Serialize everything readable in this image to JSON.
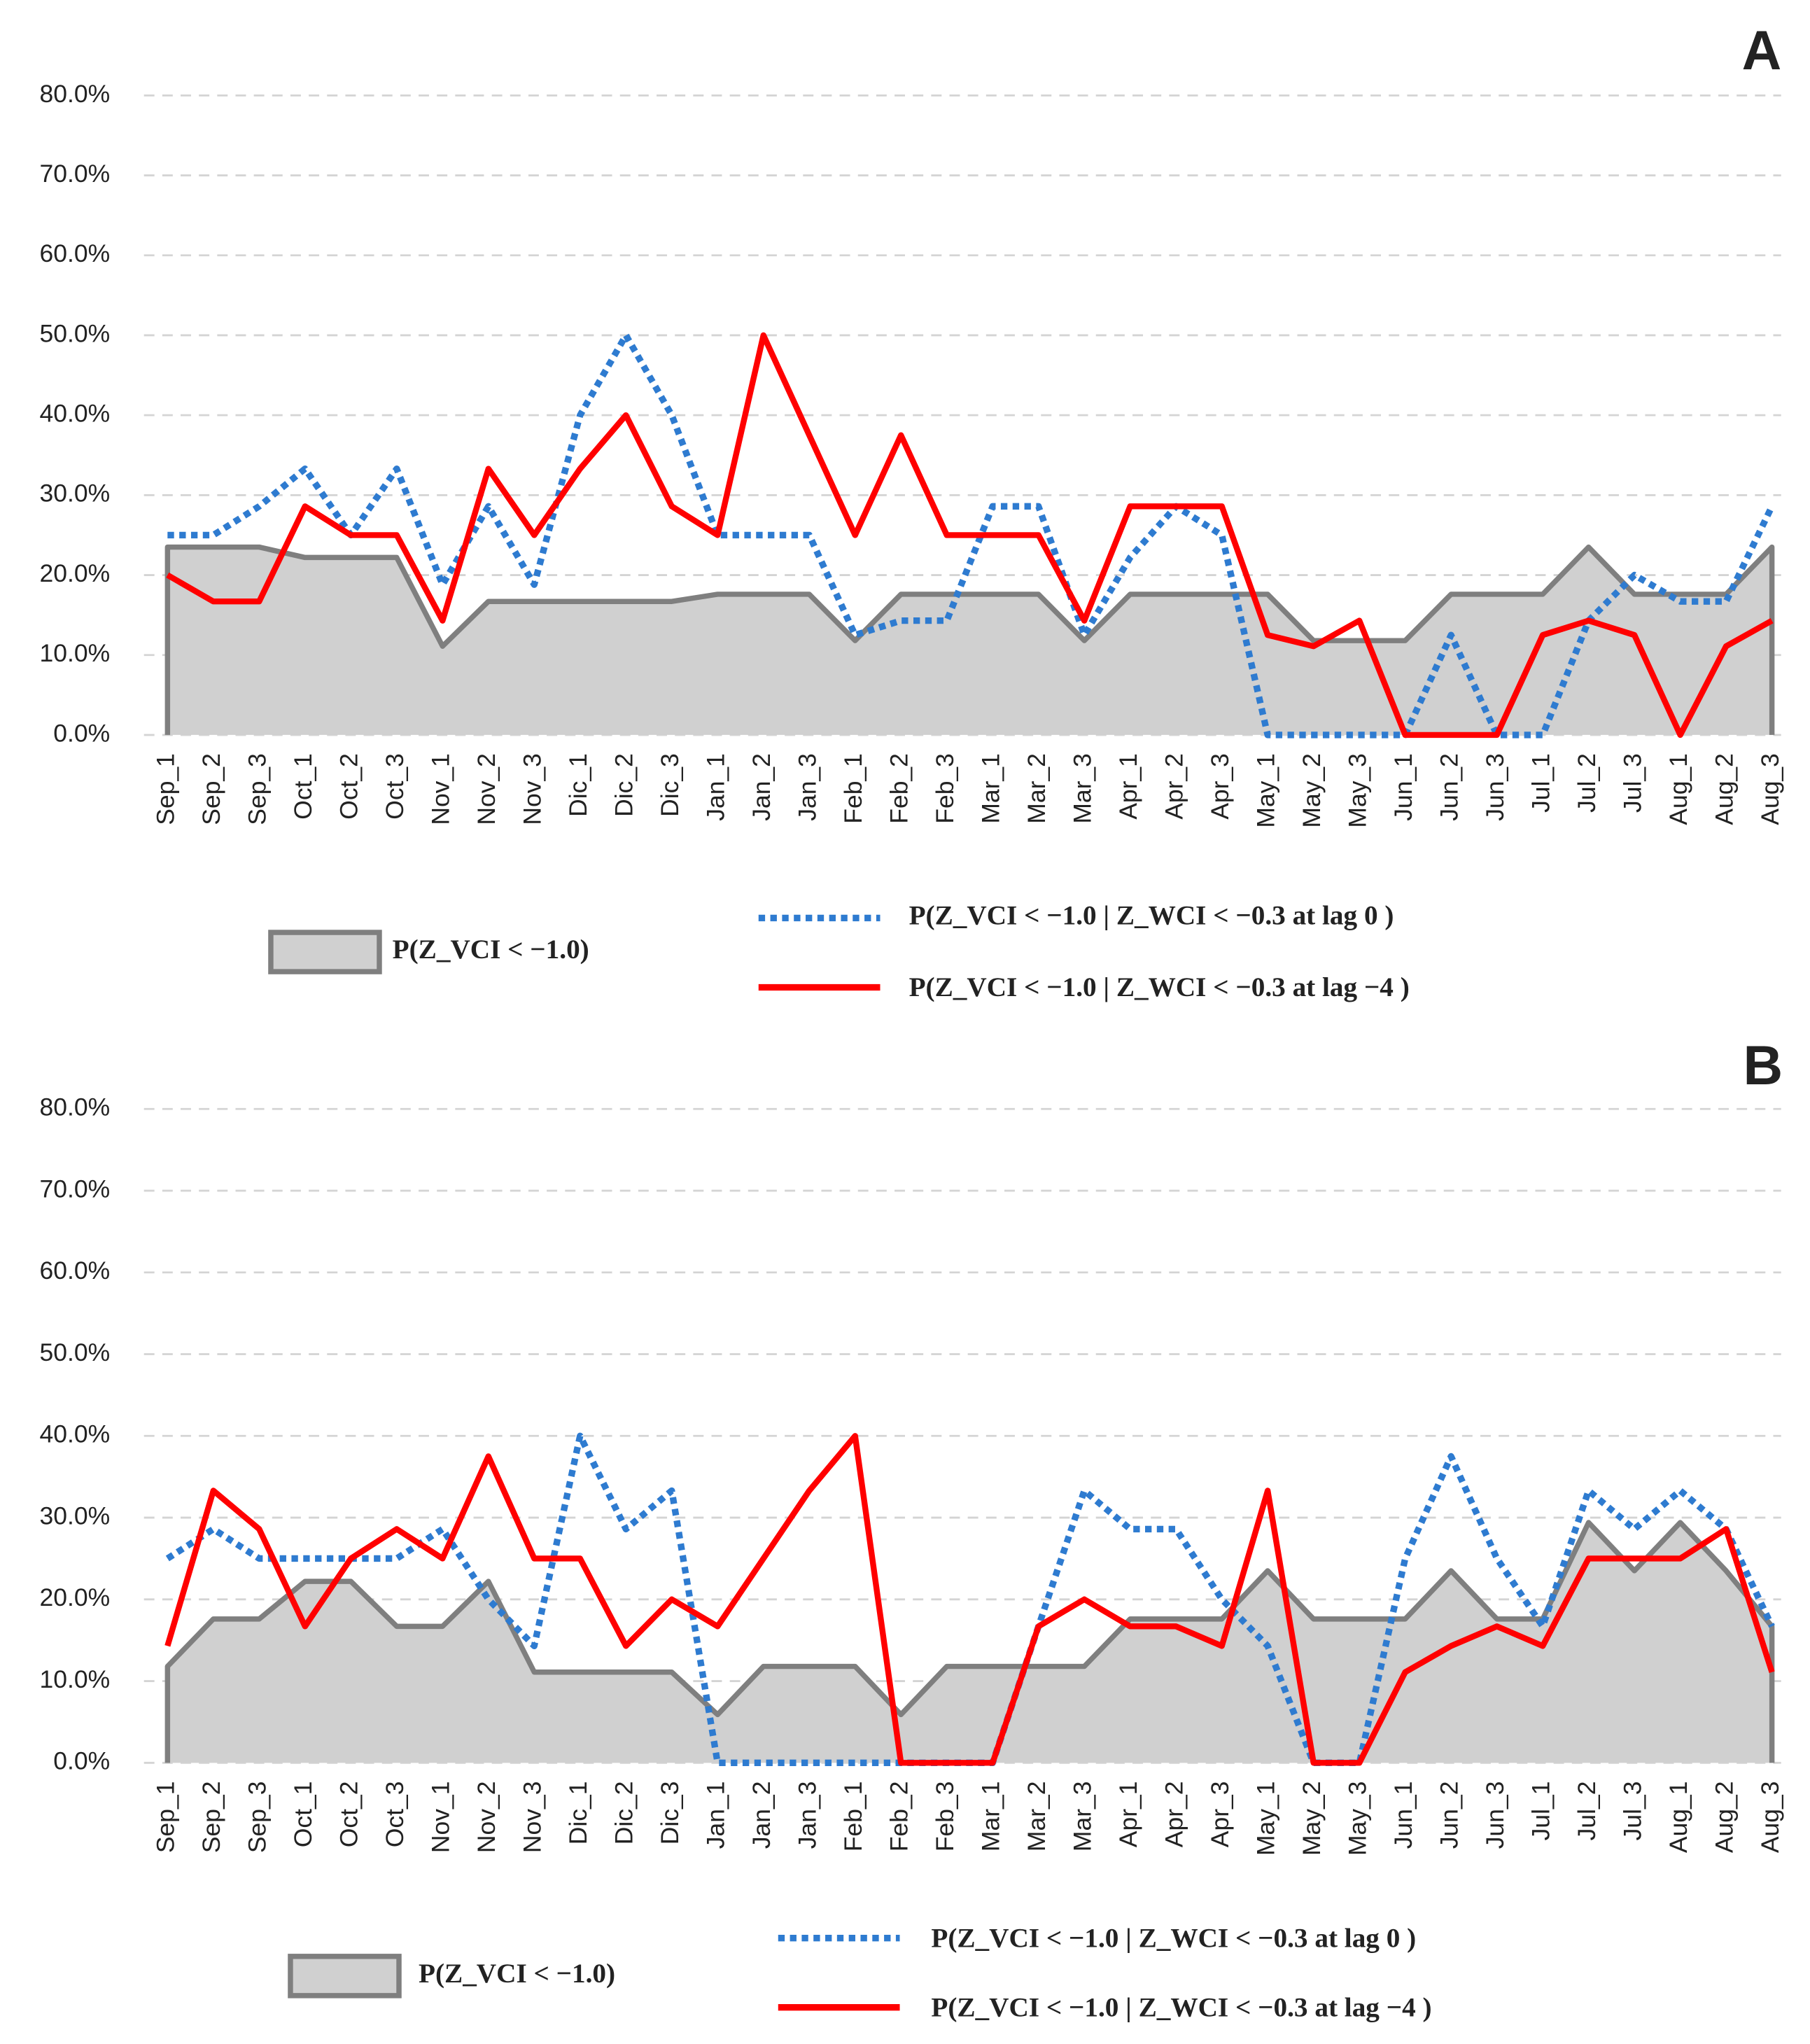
{
  "chart_data": [
    {
      "type": "line",
      "label": "A",
      "categories": [
        "Sep_1",
        "Sep_2",
        "Sep_3",
        "Oct_1",
        "Oct_2",
        "Oct_3",
        "Nov_1",
        "Nov_2",
        "Nov_3",
        "Dic_1",
        "Dic_2",
        "Dic_3",
        "Jan_1",
        "Jan_2",
        "Jan_3",
        "Feb_1",
        "Feb_2",
        "Feb_3",
        "Mar_1",
        "Mar_2",
        "Mar_3",
        "Apr_1",
        "Apr_2",
        "Apr_3",
        "May_1",
        "May_2",
        "May_3",
        "Jun_1",
        "Jun_2",
        "Jun_3",
        "Jul_1",
        "Jul_2",
        "Jul_3",
        "Aug_1",
        "Aug_2",
        "Aug_3"
      ],
      "ylim": [
        0,
        80
      ],
      "yticks": [
        {
          "value": 0,
          "label": "0.0%"
        },
        {
          "value": 10,
          "label": "10.0%"
        },
        {
          "value": 20,
          "label": "20.0%"
        },
        {
          "value": 30,
          "label": "30.0%"
        },
        {
          "value": 40,
          "label": "40.0%"
        },
        {
          "value": 50,
          "label": "50.0%"
        },
        {
          "value": 60,
          "label": "60.0%"
        },
        {
          "value": 70,
          "label": "70.0%"
        },
        {
          "value": 80,
          "label": "80.0%"
        }
      ],
      "grid": true,
      "series": [
        {
          "name": "P(Z_VCI < −1.0)",
          "style": "area",
          "color": "#7f7f7f",
          "fill": "#d0d0d0",
          "values": [
            23.5,
            23.5,
            23.5,
            22.2,
            22.2,
            22.2,
            11.1,
            16.7,
            16.7,
            16.7,
            16.7,
            16.7,
            17.6,
            17.6,
            17.6,
            11.8,
            17.6,
            17.6,
            17.6,
            17.6,
            11.8,
            17.6,
            17.6,
            17.6,
            17.6,
            11.8,
            11.8,
            11.8,
            17.6,
            17.6,
            17.6,
            23.5,
            17.6,
            17.6,
            17.6,
            23.5
          ]
        },
        {
          "name": "P(Z_VCI < −1.0 | Z_WCI < −0.3 at lag 0 )",
          "style": "dotted",
          "color": "#2e7bd0",
          "values": [
            25,
            25,
            28.6,
            33.3,
            25,
            33.3,
            18.8,
            28.6,
            18.8,
            40,
            50,
            40,
            25,
            25,
            25,
            12.5,
            14.3,
            14.3,
            28.6,
            28.6,
            12.5,
            22.2,
            28.6,
            25,
            0,
            0,
            0,
            0,
            12.5,
            0,
            0,
            14.3,
            20,
            16.7,
            16.7,
            28.6
          ]
        },
        {
          "name": "P(Z_VCI < −1.0 | Z_WCI < −0.3 at lag −4 )",
          "style": "solid",
          "color": "#ff0000",
          "values": [
            20,
            16.7,
            16.7,
            28.6,
            25,
            25,
            14.3,
            33.3,
            25,
            33.3,
            40,
            28.6,
            25,
            50,
            37.5,
            25,
            37.5,
            25,
            25,
            25,
            14.3,
            28.6,
            28.6,
            28.6,
            12.5,
            11.1,
            14.3,
            0,
            0,
            0,
            12.5,
            14.3,
            12.5,
            0,
            11.1,
            14.3
          ]
        }
      ]
    },
    {
      "type": "line",
      "label": "B",
      "categories": [
        "Sep_1",
        "Sep_2",
        "Sep_3",
        "Oct_1",
        "Oct_2",
        "Oct_3",
        "Nov_1",
        "Nov_2",
        "Nov_3",
        "Dic_1",
        "Dic_2",
        "Dic_3",
        "Jan_1",
        "Jan_2",
        "Jan_3",
        "Feb_1",
        "Feb_2",
        "Feb_3",
        "Mar_1",
        "Mar_2",
        "Mar_3",
        "Apr_1",
        "Apr_2",
        "Apr_3",
        "May_1",
        "May_2",
        "May_3",
        "Jun_1",
        "Jun_2",
        "Jun_3",
        "Jul_1",
        "Jul_2",
        "Jul_3",
        "Aug_1",
        "Aug_2",
        "Aug_3"
      ],
      "ylim": [
        0,
        80
      ],
      "yticks": [
        {
          "value": 0,
          "label": "0.0%"
        },
        {
          "value": 10,
          "label": "10.0%"
        },
        {
          "value": 20,
          "label": "20.0%"
        },
        {
          "value": 30,
          "label": "30.0%"
        },
        {
          "value": 40,
          "label": "40.0%"
        },
        {
          "value": 50,
          "label": "50.0%"
        },
        {
          "value": 60,
          "label": "60.0%"
        },
        {
          "value": 70,
          "label": "70.0%"
        },
        {
          "value": 80,
          "label": "80.0%"
        }
      ],
      "grid": true,
      "series": [
        {
          "name": "P(Z_VCI < −1.0)",
          "style": "area",
          "color": "#7f7f7f",
          "fill": "#d0d0d0",
          "values": [
            11.8,
            17.6,
            17.6,
            22.2,
            22.2,
            16.7,
            16.7,
            22.2,
            11.1,
            11.1,
            11.1,
            11.1,
            5.9,
            11.8,
            11.8,
            11.8,
            5.9,
            11.8,
            11.8,
            11.8,
            11.8,
            17.6,
            17.6,
            17.6,
            23.5,
            17.6,
            17.6,
            17.6,
            23.5,
            17.6,
            17.6,
            29.4,
            23.5,
            29.4,
            23.5,
            16.7
          ]
        },
        {
          "name": "P(Z_VCI < −1.0 | Z_WCI < −0.3 at lag 0 )",
          "style": "dotted",
          "color": "#2e7bd0",
          "values": [
            25,
            28.6,
            25,
            25,
            25,
            25,
            28.6,
            20,
            14.3,
            40,
            28.6,
            33.3,
            0,
            0,
            0,
            0,
            0,
            0,
            0,
            16.7,
            33.3,
            28.6,
            28.6,
            20,
            14.3,
            0,
            0,
            25,
            37.5,
            25,
            16.7,
            33.3,
            28.6,
            33.3,
            28.6,
            16.7
          ]
        },
        {
          "name": "P(Z_VCI < −1.0 | Z_WCI < −0.3 at lag −4 )",
          "style": "solid",
          "color": "#ff0000",
          "values": [
            14.3,
            33.3,
            28.6,
            16.7,
            25,
            28.6,
            25,
            37.5,
            25,
            25,
            14.3,
            20,
            16.7,
            25,
            33.3,
            40,
            0,
            0,
            0,
            16.7,
            20,
            16.7,
            16.7,
            14.3,
            33.3,
            0,
            0,
            11.1,
            14.3,
            16.7,
            14.3,
            25,
            25,
            25,
            28.6,
            11.1
          ]
        }
      ]
    }
  ]
}
